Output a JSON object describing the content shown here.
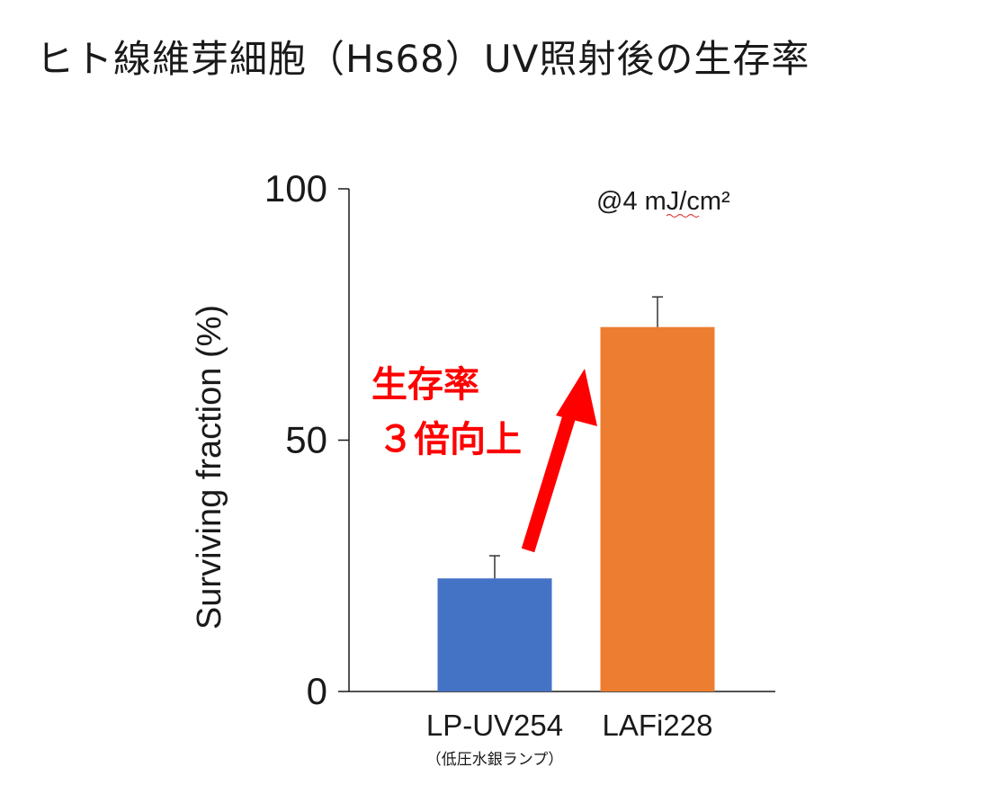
{
  "title": "ヒト線維芽細胞（Hs68）UV照射後の生存率",
  "chart_data": {
    "type": "bar",
    "ylabel": "Surviving fraction (%)",
    "ylim": [
      0,
      100
    ],
    "yticks": [
      0,
      50,
      100
    ],
    "categories": [
      "LP-UV254",
      "LAFi228"
    ],
    "category_sublabels": [
      "（低圧水銀ランプ）",
      ""
    ],
    "values": [
      22.5,
      72.5
    ],
    "errors": [
      4.5,
      6
    ],
    "bar_colors": [
      "#4472c4",
      "#ed7d31"
    ],
    "annotation": "@4 mJ/cm²",
    "callout_lines": [
      "生存率",
      "３倍向上"
    ],
    "callout_color": "#ff0000",
    "grid": false
  }
}
